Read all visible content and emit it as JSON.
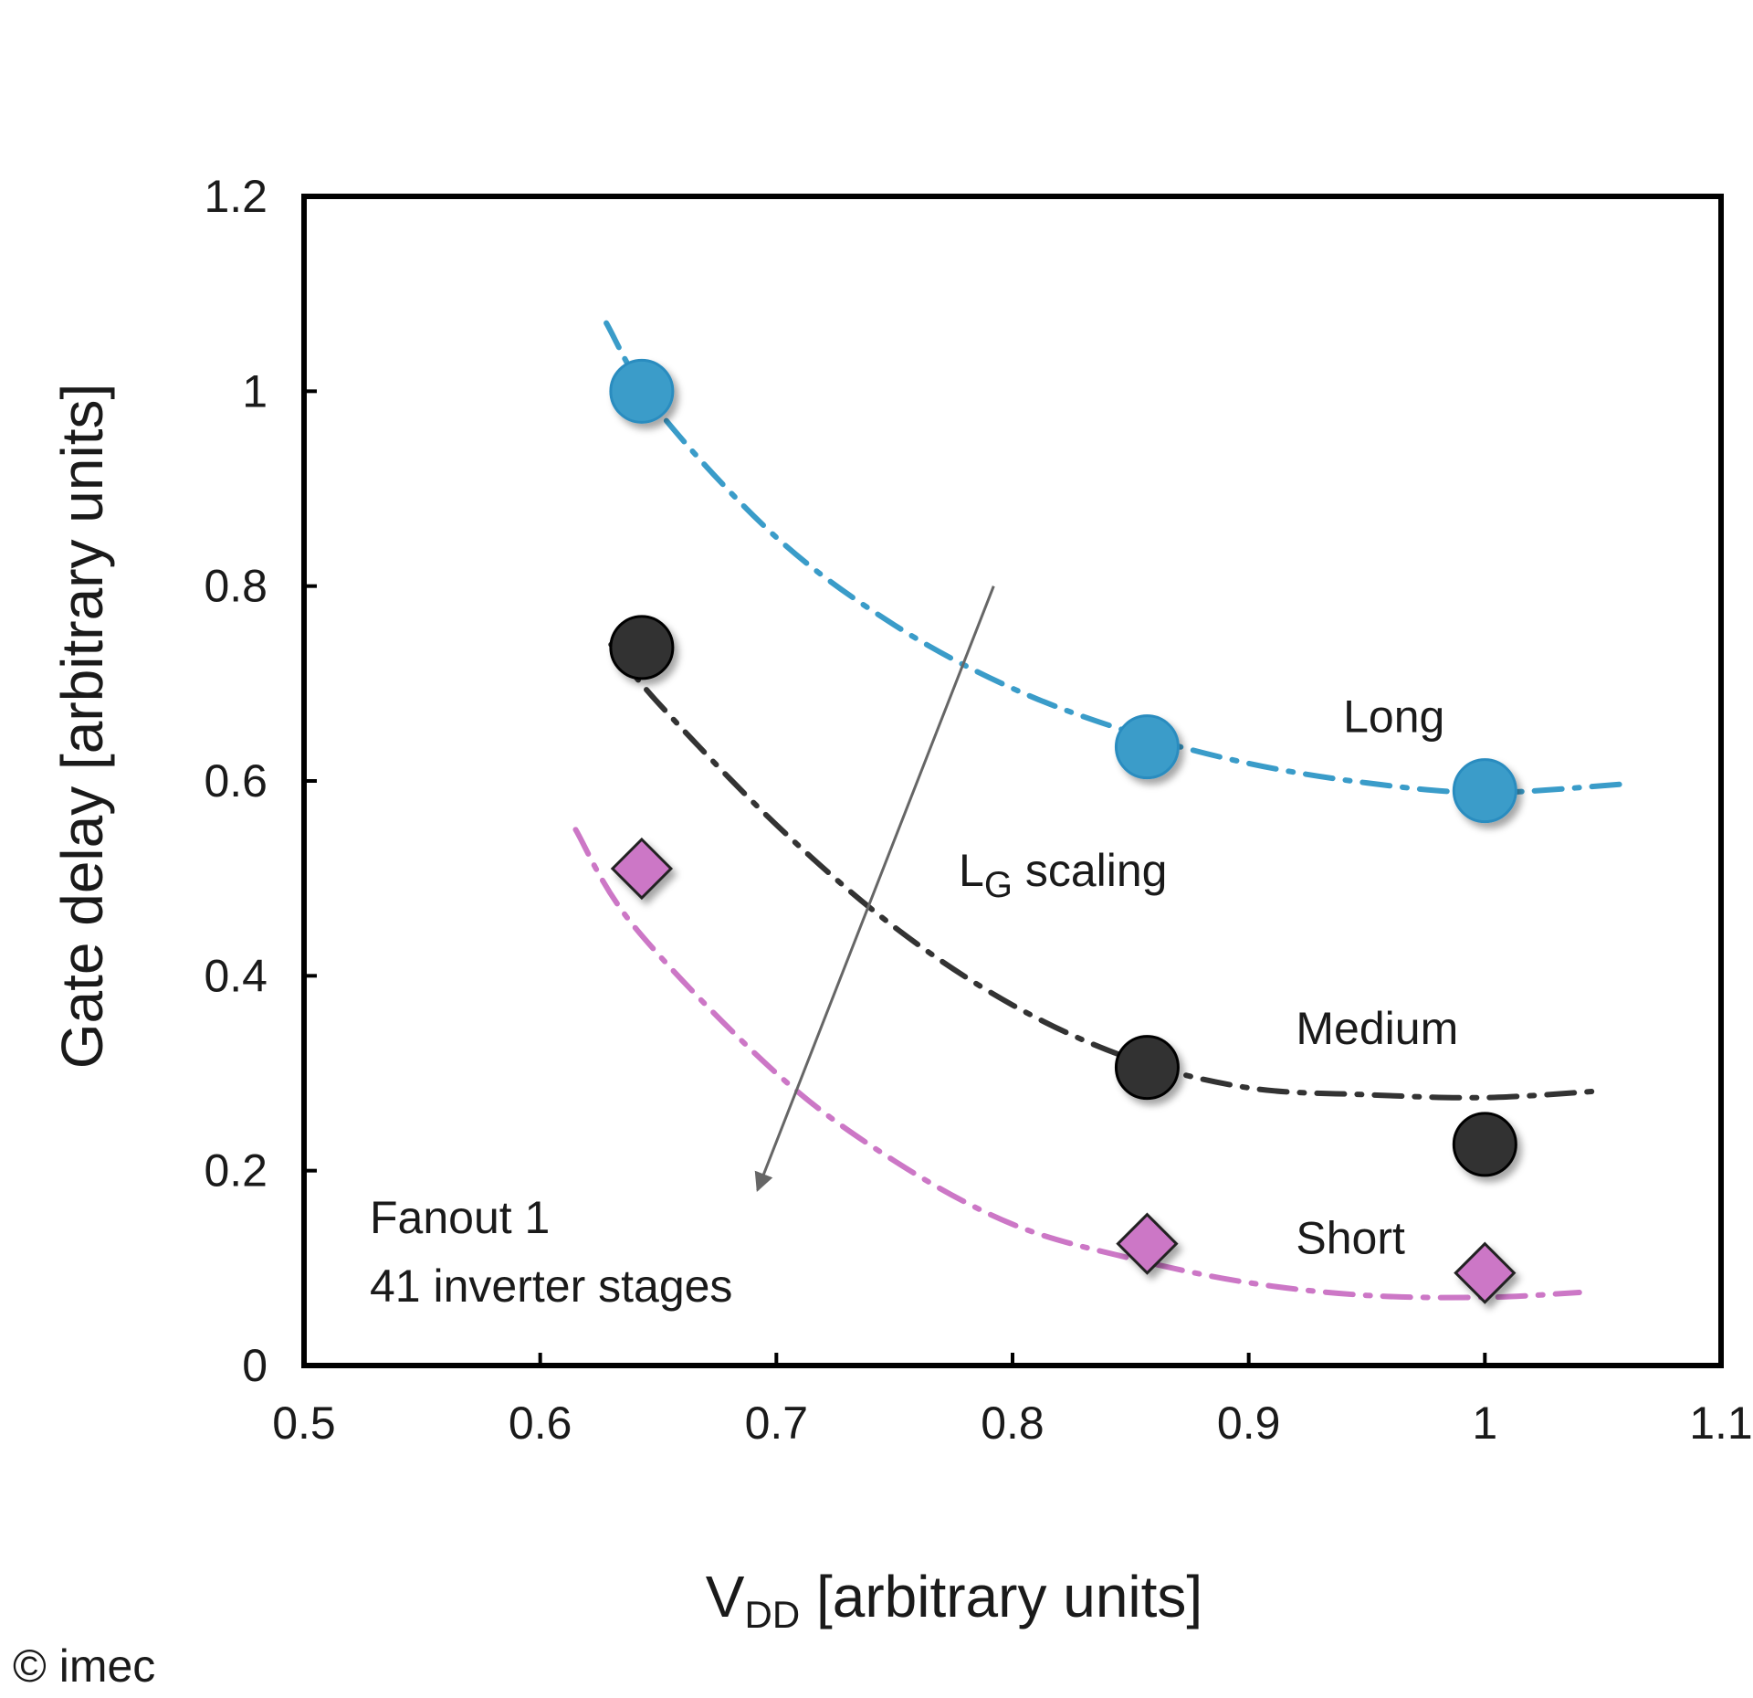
{
  "credit": "© imec",
  "chart_data": {
    "type": "scatter",
    "title": "",
    "xlabel_main": "V",
    "xlabel_sub": "DD",
    "xlabel_rest": " [arbitrary units]",
    "ylabel": "Gate delay [arbitrary units]",
    "xlim": [
      0.5,
      1.1
    ],
    "ylim": [
      0,
      1.2
    ],
    "x_ticks": [
      0.5,
      0.6,
      0.7,
      0.8,
      0.9,
      1.0,
      1.1
    ],
    "x_tick_labels": [
      "0.5",
      "0.6",
      "0.7",
      "0.8",
      "0.9",
      "1",
      "1.1"
    ],
    "y_ticks": [
      0,
      0.2,
      0.4,
      0.6,
      0.8,
      1.0,
      1.2
    ],
    "y_tick_labels": [
      "0",
      "0.2",
      "0.4",
      "0.6",
      "0.8",
      "1",
      "1.2"
    ],
    "grid": false,
    "series": [
      {
        "name": "Long",
        "marker": "circle",
        "color": "#3a9cc9",
        "points": [
          [
            0.643,
            1.0
          ],
          [
            0.857,
            0.635
          ],
          [
            1.0,
            0.59
          ]
        ],
        "trend": [
          [
            0.628,
            1.07
          ],
          [
            0.65,
            0.98
          ],
          [
            0.7,
            0.85
          ],
          [
            0.75,
            0.76
          ],
          [
            0.8,
            0.695
          ],
          [
            0.85,
            0.65
          ],
          [
            0.9,
            0.618
          ],
          [
            0.95,
            0.598
          ],
          [
            1.0,
            0.588
          ],
          [
            1.06,
            0.597
          ]
        ]
      },
      {
        "name": "Medium",
        "marker": "circle",
        "color": "#333333",
        "points": [
          [
            0.643,
            0.737
          ],
          [
            0.857,
            0.306
          ],
          [
            1.0,
            0.227
          ]
        ],
        "trend": [
          [
            0.63,
            0.74
          ],
          [
            0.65,
            0.68
          ],
          [
            0.7,
            0.555
          ],
          [
            0.75,
            0.45
          ],
          [
            0.8,
            0.37
          ],
          [
            0.85,
            0.315
          ],
          [
            0.9,
            0.285
          ],
          [
            0.95,
            0.278
          ],
          [
            1.0,
            0.275
          ],
          [
            1.05,
            0.282
          ]
        ]
      },
      {
        "name": "Short",
        "marker": "diamond",
        "color": "#cc77c6",
        "points": [
          [
            0.643,
            0.51
          ],
          [
            0.857,
            0.125
          ],
          [
            1.0,
            0.095
          ]
        ],
        "trend": [
          [
            0.615,
            0.55
          ],
          [
            0.64,
            0.45
          ],
          [
            0.7,
            0.3
          ],
          [
            0.75,
            0.21
          ],
          [
            0.8,
            0.145
          ],
          [
            0.85,
            0.11
          ],
          [
            0.9,
            0.085
          ],
          [
            0.95,
            0.072
          ],
          [
            1.0,
            0.07
          ],
          [
            1.04,
            0.075
          ]
        ]
      }
    ],
    "series_label_positions": {
      "Long": [
        0.94,
        0.65
      ],
      "Medium": [
        0.92,
        0.33
      ],
      "Short": [
        0.92,
        0.115
      ]
    },
    "arrow": {
      "label_main": "L",
      "label_sub": "G",
      "label_rest": " scaling",
      "from": [
        0.792,
        0.8
      ],
      "to": [
        0.692,
        0.18
      ]
    },
    "annotations": [
      "Fanout 1",
      "41 inverter stages"
    ]
  }
}
